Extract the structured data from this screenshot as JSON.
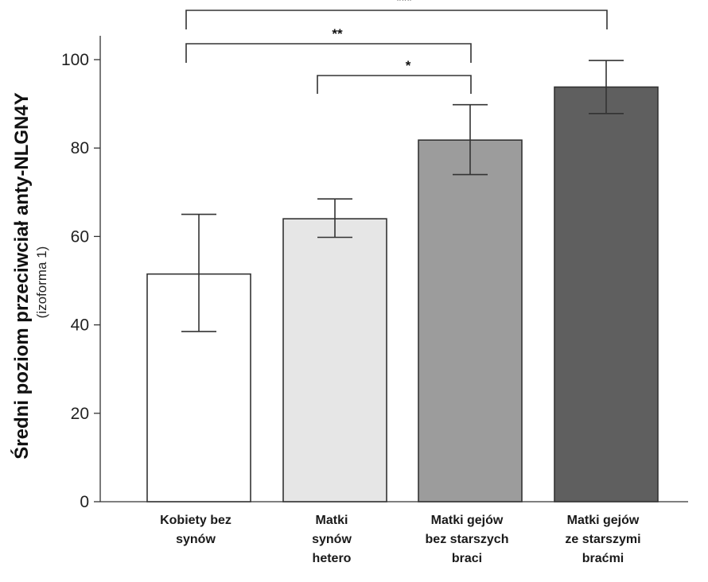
{
  "chart_data": {
    "type": "bar",
    "ylabel": "Średni poziom przeciwciał anty-NLGN4Y",
    "ylabel_sub": "(izoforma 1)",
    "ylim": [
      0,
      105
    ],
    "yticks": [
      0,
      20,
      40,
      60,
      80,
      100
    ],
    "grid": false,
    "categories": [
      [
        "Kobiety bez",
        "synów"
      ],
      [
        "Matki",
        "synów",
        "hetero"
      ],
      [
        "Matki gejów",
        "bez starszych",
        "braci"
      ],
      [
        "Matki gejów",
        "ze starszymi",
        "braćmi"
      ]
    ],
    "values": [
      51.5,
      64,
      81.8,
      93.8
    ],
    "errors_low": [
      38.5,
      59.8,
      74,
      87.8
    ],
    "errors_high": [
      65,
      68.5,
      89.8,
      99.8
    ],
    "bar_colors": [
      "#ffffff",
      "#e6e6e6",
      "#9c9c9c",
      "#5f5f5f"
    ],
    "significance": [
      {
        "from": 0,
        "to": 3,
        "label": "***"
      },
      {
        "from": 0,
        "to": 2,
        "label": "**"
      },
      {
        "from": 1,
        "to": 2,
        "label": "*"
      }
    ]
  }
}
